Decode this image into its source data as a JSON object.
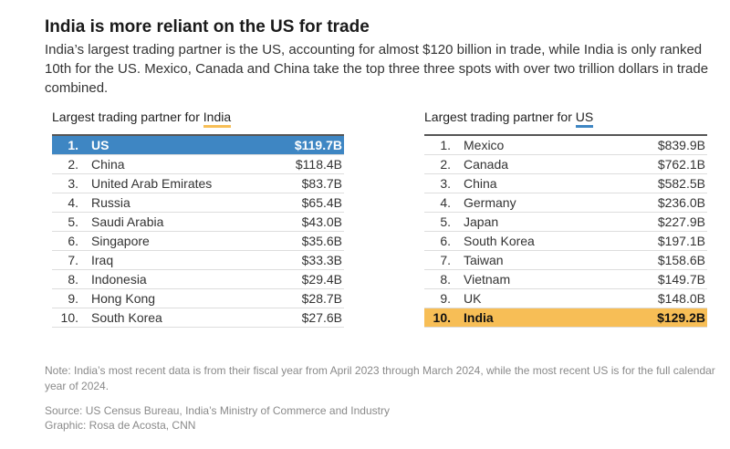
{
  "title": "India is more reliant on the US for trade",
  "subtitle": "India’s largest trading partner is the US, accounting for almost $120 billion in trade, while India is only ranked 10th for the US. Mexico, Canada and China take the top three three spots with over two trillion dollars in trade combined.",
  "colors": {
    "india_accent": "#f7be56",
    "us_accent": "#3e86c3"
  },
  "india_table": {
    "heading_prefix": "Largest trading partner for ",
    "heading_country": "India",
    "rows": [
      {
        "rank": "1.",
        "name": "US",
        "value": "$119.7B"
      },
      {
        "rank": "2.",
        "name": "China",
        "value": "$118.4B"
      },
      {
        "rank": "3.",
        "name": "United Arab Emirates",
        "value": "$83.7B"
      },
      {
        "rank": "4.",
        "name": "Russia",
        "value": "$65.4B"
      },
      {
        "rank": "5.",
        "name": "Saudi Arabia",
        "value": "$43.0B"
      },
      {
        "rank": "6.",
        "name": "Singapore",
        "value": "$35.6B"
      },
      {
        "rank": "7.",
        "name": "Iraq",
        "value": "$33.3B"
      },
      {
        "rank": "8.",
        "name": "Indonesia",
        "value": "$29.4B"
      },
      {
        "rank": "9.",
        "name": "Hong Kong",
        "value": "$28.7B"
      },
      {
        "rank": "10.",
        "name": "South Korea",
        "value": "$27.6B"
      }
    ]
  },
  "us_table": {
    "heading_prefix": "Largest trading partner for ",
    "heading_country": "US",
    "rows": [
      {
        "rank": "1.",
        "name": "Mexico",
        "value": "$839.9B"
      },
      {
        "rank": "2.",
        "name": "Canada",
        "value": "$762.1B"
      },
      {
        "rank": "3.",
        "name": "China",
        "value": "$582.5B"
      },
      {
        "rank": "4.",
        "name": "Germany",
        "value": "$236.0B"
      },
      {
        "rank": "5.",
        "name": "Japan",
        "value": "$227.9B"
      },
      {
        "rank": "6.",
        "name": "South Korea",
        "value": "$197.1B"
      },
      {
        "rank": "7.",
        "name": "Taiwan",
        "value": "$158.6B"
      },
      {
        "rank": "8.",
        "name": "Vietnam",
        "value": "$149.7B"
      },
      {
        "rank": "9.",
        "name": "UK",
        "value": "$148.0B"
      },
      {
        "rank": "10.",
        "name": "India",
        "value": "$129.2B"
      }
    ]
  },
  "note": "Note: India’s most recent data is from their fiscal year from April 2023 through March 2024, while the most recent US is for the full calendar year of 2024.",
  "source": "Source: US Census Bureau, India’s Ministry of Commerce and Industry",
  "credit": "Graphic: Rosa de Acosta, CNN"
}
